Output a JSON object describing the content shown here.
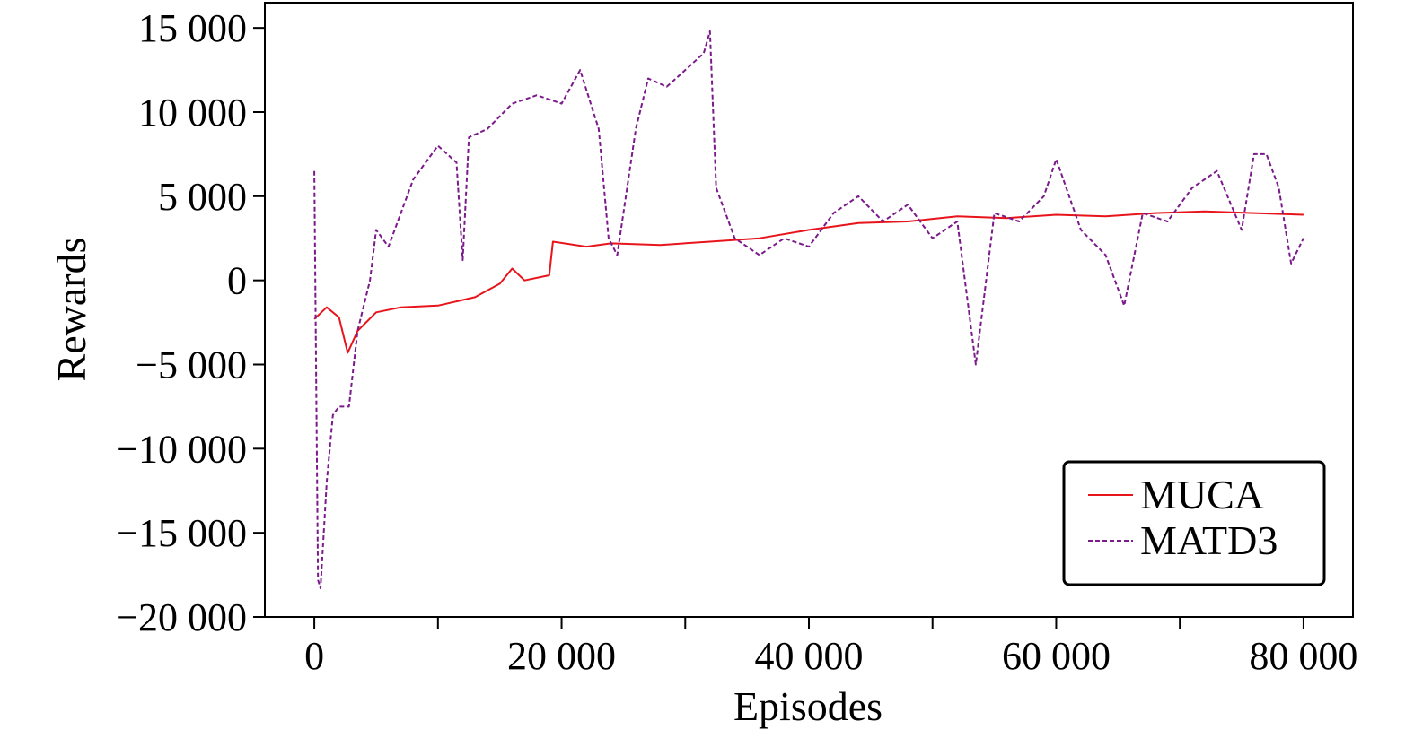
{
  "chart_data": {
    "type": "line",
    "xlabel": "Episodes",
    "ylabel": "Rewards",
    "xlim": [
      -4000,
      84000
    ],
    "ylim": [
      -20000,
      16500
    ],
    "x_ticks": [
      0,
      20000,
      40000,
      60000,
      80000
    ],
    "x_minor_ticks": [
      10000,
      30000,
      50000,
      70000
    ],
    "x_tick_labels": [
      "0",
      "20 000",
      "40 000",
      "60 000",
      "80 000"
    ],
    "y_ticks": [
      15000,
      10000,
      5000,
      0,
      -5000,
      -10000,
      -15000,
      -20000
    ],
    "y_tick_labels": [
      "15 000",
      "10 000",
      "5 000",
      "0",
      "−5 000",
      "−10 000",
      "−15 000",
      "−20 000"
    ],
    "grid": false,
    "legend_position": "bottom-right",
    "series": [
      {
        "name": "MUCA",
        "color": "#e8141c",
        "style": "solid",
        "x": [
          0,
          1000,
          2000,
          2700,
          3500,
          5000,
          7000,
          10000,
          13000,
          15000,
          16000,
          17000,
          19000,
          19300,
          22000,
          24000,
          28000,
          32000,
          36000,
          40000,
          44000,
          48000,
          52000,
          56000,
          60000,
          64000,
          68000,
          72000,
          76000,
          80000
        ],
        "y": [
          -2300,
          -1600,
          -2200,
          -4300,
          -3000,
          -1900,
          -1600,
          -1500,
          -1000,
          -200,
          700,
          0,
          300,
          2300,
          2000,
          2200,
          2100,
          2300,
          2500,
          3000,
          3400,
          3500,
          3800,
          3700,
          3900,
          3800,
          4000,
          4100,
          4000,
          3900
        ]
      },
      {
        "name": "MATD3",
        "color": "#7b1a8a",
        "style": "dashed",
        "x": [
          0,
          300,
          500,
          1000,
          1500,
          2000,
          2800,
          3500,
          4500,
          5000,
          6000,
          7000,
          8000,
          10000,
          11500,
          12000,
          12500,
          14000,
          16000,
          18000,
          20000,
          21500,
          23000,
          23800,
          24500,
          26000,
          27000,
          28500,
          30000,
          31500,
          32000,
          32500,
          34000,
          36000,
          38000,
          40000,
          42000,
          44000,
          46000,
          48000,
          50000,
          52000,
          53500,
          55000,
          57000,
          59000,
          60000,
          62000,
          64000,
          65500,
          67000,
          69000,
          71000,
          73000,
          75000,
          76000,
          77000,
          78000,
          79000,
          80000
        ],
        "y": [
          6500,
          -17800,
          -18300,
          -12000,
          -8000,
          -7500,
          -7500,
          -3000,
          0,
          3000,
          2000,
          4000,
          6000,
          8000,
          7000,
          1200,
          8500,
          9000,
          10500,
          11000,
          10500,
          12500,
          9000,
          2500,
          1500,
          9000,
          12000,
          11500,
          12500,
          13500,
          14800,
          5500,
          2500,
          1500,
          2500,
          2000,
          4000,
          5000,
          3500,
          4500,
          2500,
          3500,
          -5000,
          4000,
          3500,
          5000,
          7200,
          3000,
          1500,
          -1500,
          4000,
          3500,
          5500,
          6500,
          3000,
          7500,
          7500,
          5500,
          1000,
          2500
        ]
      }
    ]
  }
}
